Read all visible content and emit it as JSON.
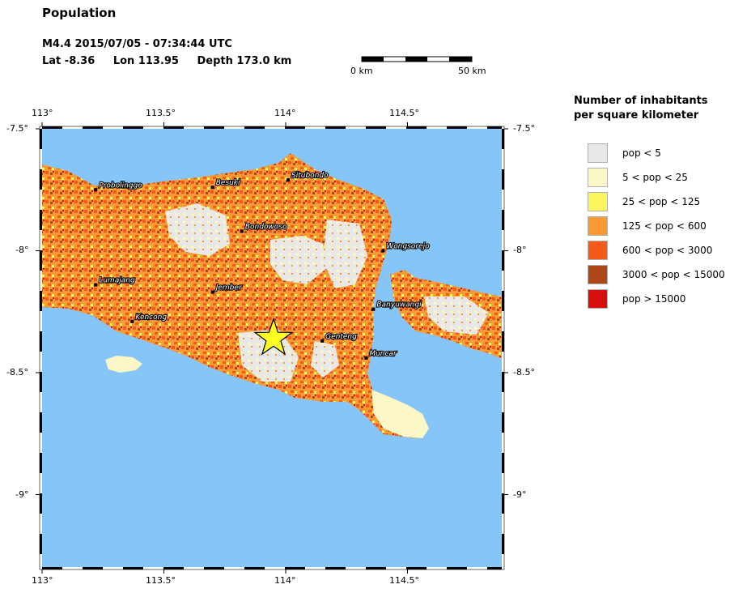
{
  "title": "Population",
  "event": {
    "magnitude_time": "M4.4  2015/07/05 - 07:34:44 UTC",
    "lat": "Lat -8.36",
    "lon": "Lon 113.95",
    "depth": "Depth 173.0 km"
  },
  "scalebar": {
    "left_label": "0 km",
    "right_label": "50 km"
  },
  "axes": {
    "x_ticks": [
      "113°",
      "113.5°",
      "114°",
      "114.5°"
    ],
    "y_ticks": [
      "-7.5°",
      "-8°",
      "-8.5°",
      "-9°"
    ],
    "lon_range": [
      113.0,
      114.9
    ],
    "lat_range": [
      -9.3,
      -7.5
    ]
  },
  "legend": {
    "title_line1": "Number of inhabitants",
    "title_line2": "per square kilometer",
    "items": [
      {
        "label": "pop < 5",
        "color": "#e8e8e6"
      },
      {
        "label": "5 < pop < 25",
        "color": "#fbf7c6"
      },
      {
        "label": "25 < pop < 125",
        "color": "#fbf560"
      },
      {
        "label": "125 < pop < 600",
        "color": "#f99a35"
      },
      {
        "label": "600 < pop < 3000",
        "color": "#f65a18"
      },
      {
        "label": "3000 < pop < 15000",
        "color": "#ad4717"
      },
      {
        "label": "pop > 15000",
        "color": "#d80e0e"
      }
    ]
  },
  "cities": [
    {
      "name": "Probolinggo",
      "lon": 113.22,
      "lat": -7.75
    },
    {
      "name": "Besuki",
      "lon": 113.7,
      "lat": -7.74
    },
    {
      "name": "Situbondo",
      "lon": 114.01,
      "lat": -7.71
    },
    {
      "name": "Bondowoso",
      "lon": 113.82,
      "lat": -7.92
    },
    {
      "name": "Wongsorejo",
      "lon": 114.4,
      "lat": -8.0
    },
    {
      "name": "Lumajang",
      "lon": 113.22,
      "lat": -8.14
    },
    {
      "name": "Jember",
      "lon": 113.7,
      "lat": -8.17
    },
    {
      "name": "Banyuwangi",
      "lon": 114.36,
      "lat": -8.24
    },
    {
      "name": "Kencong",
      "lon": 113.37,
      "lat": -8.29
    },
    {
      "name": "Genteng",
      "lon": 114.15,
      "lat": -8.37
    },
    {
      "name": "Muncar",
      "lon": 114.33,
      "lat": -8.44
    }
  ],
  "epicenter": {
    "lon": 113.95,
    "lat": -8.36
  },
  "colors": {
    "ocean": "#86c5f8",
    "epicenter": "#fefe22"
  }
}
